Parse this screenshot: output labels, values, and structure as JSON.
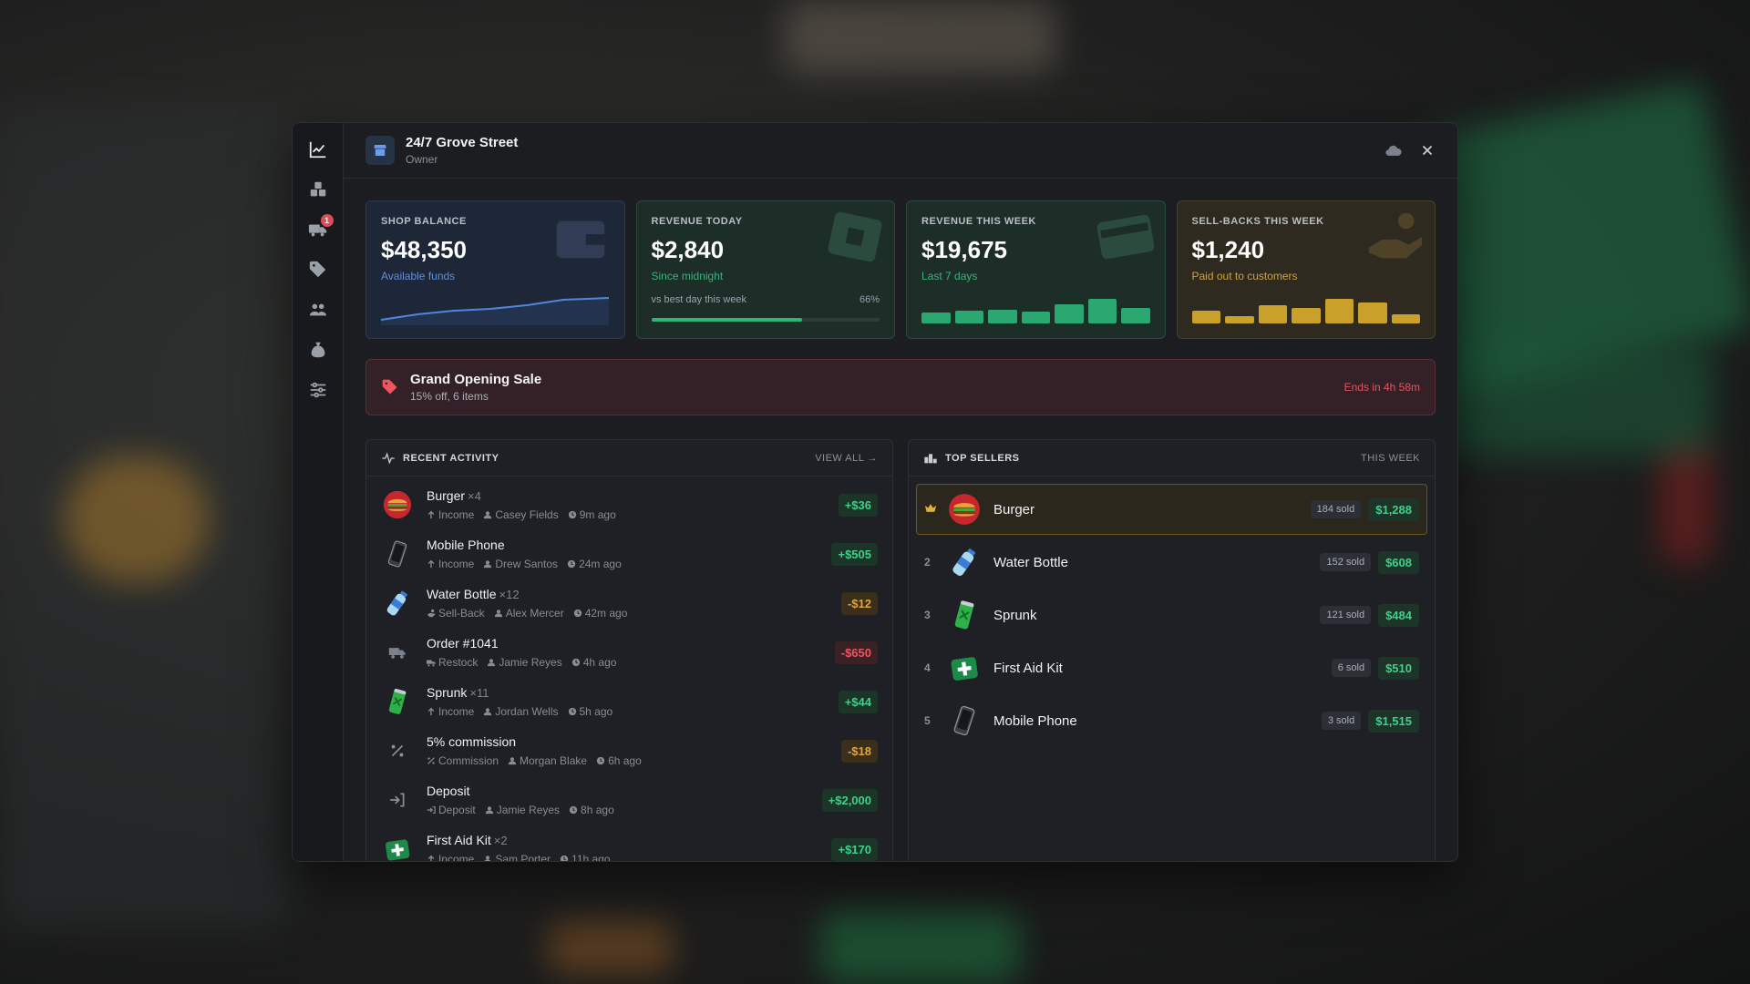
{
  "header": {
    "store_name": "24/7 Grove Street",
    "role": "Owner"
  },
  "nav": {
    "deliveries_badge": "1"
  },
  "stats": {
    "balance": {
      "label": "SHOP BALANCE",
      "value": "$48,350",
      "sub": "Available funds"
    },
    "today": {
      "label": "REVENUE TODAY",
      "value": "$2,840",
      "sub": "Since midnight",
      "progress_label": "vs best day this week",
      "progress_pct_text": "66%",
      "progress": 0.66
    },
    "week": {
      "label": "REVENUE THIS WEEK",
      "value": "$19,675",
      "sub": "Last 7 days",
      "bars": [
        0.35,
        0.42,
        0.45,
        0.38,
        0.62,
        0.78,
        0.5
      ]
    },
    "sellbacks": {
      "label": "SELL-BACKS THIS WEEK",
      "value": "$1,240",
      "sub": "Paid out to customers",
      "bars": [
        0.4,
        0.25,
        0.6,
        0.5,
        0.78,
        0.68,
        0.3
      ]
    }
  },
  "promo": {
    "title": "Grand Opening Sale",
    "sub": "15% off, 6 items",
    "ends": "Ends in 4h 58m"
  },
  "activity": {
    "title": "RECENT ACTIVITY",
    "view_all": "VIEW ALL →",
    "items": [
      {
        "name": "Burger",
        "qty": "×4",
        "type": "Income",
        "user": "Casey Fields",
        "time": "9m ago",
        "amount": "+$36"
      },
      {
        "name": "Mobile Phone",
        "qty": "",
        "type": "Income",
        "user": "Drew Santos",
        "time": "24m ago",
        "amount": "+$505"
      },
      {
        "name": "Water Bottle",
        "qty": "×12",
        "type": "Sell-Back",
        "user": "Alex Mercer",
        "time": "42m ago",
        "amount": "-$12"
      },
      {
        "name": "Order #1041",
        "qty": "",
        "type": "Restock",
        "user": "Jamie Reyes",
        "time": "4h ago",
        "amount": "-$650"
      },
      {
        "name": "Sprunk",
        "qty": "×11",
        "type": "Income",
        "user": "Jordan Wells",
        "time": "5h ago",
        "amount": "+$44"
      },
      {
        "name": "5% commission",
        "qty": "",
        "type": "Commission",
        "user": "Morgan Blake",
        "time": "6h ago",
        "amount": "-$18"
      },
      {
        "name": "Deposit",
        "qty": "",
        "type": "Deposit",
        "user": "Jamie Reyes",
        "time": "8h ago",
        "amount": "+$2,000"
      },
      {
        "name": "First Aid Kit",
        "qty": "×2",
        "type": "Income",
        "user": "Sam Porter",
        "time": "11h ago",
        "amount": "+$170"
      }
    ]
  },
  "sellers": {
    "title": "TOP SELLERS",
    "period": "THIS WEEK",
    "items": [
      {
        "rank": "",
        "name": "Burger",
        "sold": "184 sold",
        "amount": "$1,288"
      },
      {
        "rank": "2",
        "name": "Water Bottle",
        "sold": "152 sold",
        "amount": "$608"
      },
      {
        "rank": "3",
        "name": "Sprunk",
        "sold": "121 sold",
        "amount": "$484"
      },
      {
        "rank": "4",
        "name": "First Aid Kit",
        "sold": "6 sold",
        "amount": "$510"
      },
      {
        "rank": "5",
        "name": "Mobile Phone",
        "sold": "3 sold",
        "amount": "$1,515"
      }
    ]
  },
  "colors": {
    "accent_green": "#3fd08a",
    "accent_red": "#ef5560",
    "accent_gold": "#c9a02a",
    "accent_blue": "#5d8fe0"
  }
}
